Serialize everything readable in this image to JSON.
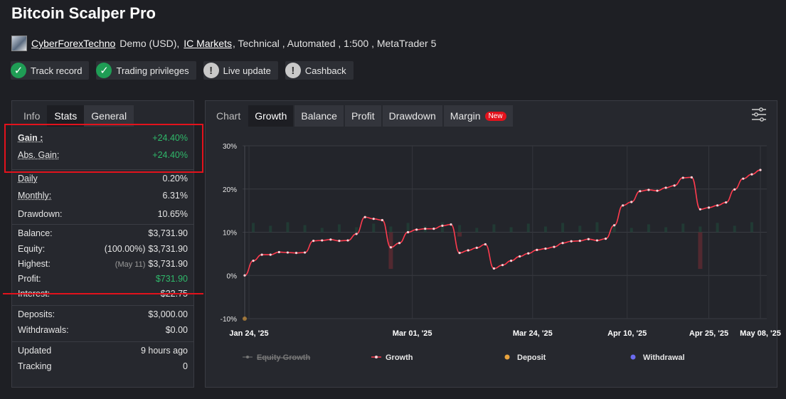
{
  "header": {
    "title": "Bitcoin Scalper Pro",
    "author": "CyberForexTechno",
    "account_type": "Demo (USD),",
    "broker": "IC Markets",
    "details": ", Technical , Automated , 1:500 , MetaTrader 5"
  },
  "badges": [
    {
      "label": "Track record",
      "icon": "check-icon",
      "status": "ok"
    },
    {
      "label": "Trading privileges",
      "icon": "check-icon",
      "status": "ok"
    },
    {
      "label": "Live update",
      "icon": "exclamation-icon",
      "status": "warn"
    },
    {
      "label": "Cashback",
      "icon": "exclamation-icon",
      "status": "warn"
    }
  ],
  "stats_tabs": [
    "Info",
    "Stats",
    "General"
  ],
  "stats": {
    "gain_label": "Gain :",
    "gain_value": "+24.40%",
    "abs_gain_label": "Abs. Gain:",
    "abs_gain_value": "+24.40%",
    "daily_label": "Daily",
    "daily_value": "0.20%",
    "monthly_label": "Monthly:",
    "monthly_value": "6.31%",
    "drawdown_label": "Drawdown:",
    "drawdown_value": "10.65%",
    "balance_label": "Balance:",
    "balance_value": "$3,731.90",
    "equity_label": "Equity:",
    "equity_note": "(100.00%)",
    "equity_value": "$3,731.90",
    "highest_label": "Highest:",
    "highest_note": "(May 11)",
    "highest_value": "$3,731.90",
    "profit_label": "Profit:",
    "profit_value": "$731.90",
    "interest_label": "Interest:",
    "interest_value": "-$22.75",
    "deposits_label": "Deposits:",
    "deposits_value": "$3,000.00",
    "withdrawals_label": "Withdrawals:",
    "withdrawals_value": "$0.00",
    "updated_label": "Updated",
    "updated_value": "9 hours ago",
    "tracking_label": "Tracking",
    "tracking_value": "0"
  },
  "chart_tabs": [
    "Chart",
    "Growth",
    "Balance",
    "Profit",
    "Drawdown",
    "Margin"
  ],
  "chart_new_tag": "New",
  "colors": {
    "growth": "#ff3b4e",
    "equity": "#777777",
    "deposit": "#e8a33d",
    "withdrawal": "#6b6bf0",
    "gain": "#2fb86a",
    "highlight": "#e3121c"
  },
  "chart_data": {
    "type": "line",
    "ylim": [
      -10,
      30
    ],
    "yticks": [
      "30%",
      "20%",
      "10%",
      "0%",
      "-10%"
    ],
    "xticks": [
      "Jan 24, '25",
      "Mar 01, '25",
      "Mar 24, '25",
      "Apr 10, '25",
      "Apr 25, '25",
      "May 08, '25"
    ],
    "series": [
      {
        "name": "Growth",
        "values": [
          0,
          3.4,
          4.8,
          4.8,
          5.4,
          5.3,
          5.2,
          5.3,
          8.0,
          8.1,
          8.3,
          8.0,
          8.1,
          9.6,
          13.5,
          13.1,
          12.8,
          6.5,
          7.5,
          10.0,
          10.6,
          10.8,
          10.8,
          11.5,
          11.8,
          5.2,
          5.8,
          6.4,
          7.2,
          1.6,
          2.4,
          3.4,
          4.4,
          5.1,
          5.9,
          6.2,
          6.6,
          7.5,
          7.9,
          8.0,
          8.4,
          8.1,
          8.5,
          11.6,
          16.2,
          17.0,
          19.5,
          19.8,
          19.6,
          20.3,
          20.8,
          22.6,
          22.7,
          15.3,
          15.7,
          16.2,
          16.9,
          19.9,
          22.4,
          23.4,
          24.4
        ]
      },
      {
        "name": "Equity Growth",
        "values": []
      }
    ],
    "legend": [
      "Equity Growth",
      "Growth",
      "Deposit",
      "Withdrawal"
    ],
    "bars": [
      {
        "index": 17,
        "value": -8.5
      },
      {
        "index": 25,
        "value": -1.0
      },
      {
        "index": 53,
        "value": -8.5
      }
    ]
  }
}
